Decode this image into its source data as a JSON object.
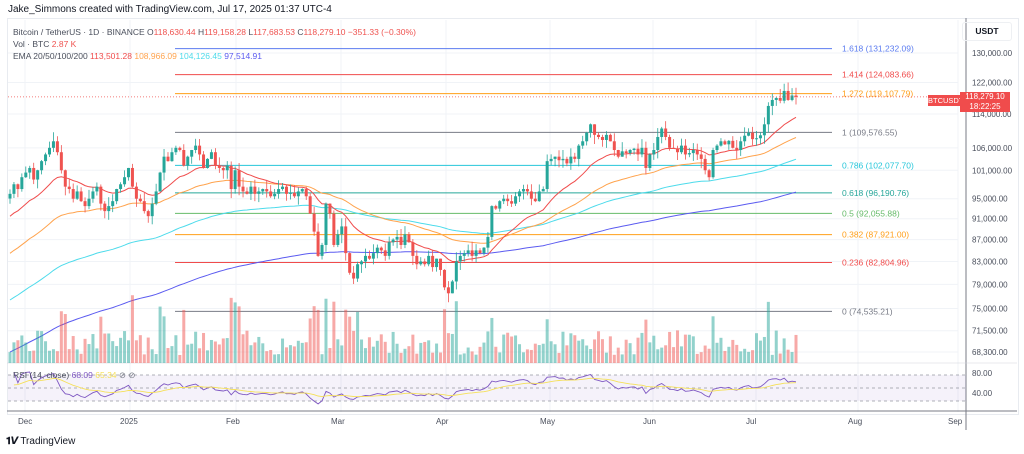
{
  "header": {
    "attribution": "Jake_Simmons created with TradingView.com, Jul 17, 2025 01:37 UTC-4"
  },
  "legend": {
    "symbol_line": "Bitcoin / TetherUS · 1D · BINANCE",
    "open_label": "O",
    "open": "118,630.44",
    "high_label": "H",
    "high": "119,158.28",
    "low_label": "L",
    "low": "117,683.53",
    "close_label": "C",
    "close": "118,279.10",
    "change": "−351.33 (−0.30%)",
    "volume_label": "Vol · BTC",
    "volume": "2.87 K",
    "ema_label": "EMA 20/50/100/200",
    "ema20": "113,501.28",
    "ema50": "108,966.09",
    "ema100": "104,126.45",
    "ema200": "97,514.91"
  },
  "rsi_legend": {
    "label": "RSI (14, close)",
    "rsi": "68.09",
    "ma": "65.34"
  },
  "price_axis": {
    "currency": "USDT",
    "ticks": [
      "130,000.00",
      "122,000.00",
      "114,000.00",
      "106,000.00",
      "101,000.00",
      "95,000.00",
      "91,000.00",
      "87,000.00",
      "83,000.00",
      "79,000.00",
      "75,000.00",
      "71,500.00",
      "68,300.00"
    ],
    "rsi_ticks": [
      "80.00",
      "40.00"
    ],
    "last_price": "118,279.10",
    "countdown": "18:22:25",
    "symbol_tag": "BTCUSDT"
  },
  "time_axis": {
    "labels": [
      "Dec",
      "2025",
      "Feb",
      "Mar",
      "Apr",
      "May",
      "Jun",
      "Jul",
      "Aug",
      "Sep"
    ]
  },
  "footer": {
    "logo_text": "TradingView"
  },
  "colors": {
    "up": "#26a69a",
    "down": "#ef5350",
    "ema20": "#f04c4c",
    "ema50": "#ffa34d",
    "ema100": "#4ddbeb",
    "ema200": "#5b5bf0",
    "rsi": "#7e57c2",
    "rsi_ma": "#f5e05a"
  },
  "chart_data": {
    "type": "candlestick",
    "title": "Bitcoin / TetherUS · 1D · BINANCE",
    "xlabel": "",
    "ylabel": "USDT",
    "x_ticks": [
      "Dec",
      "2025",
      "Feb",
      "Mar",
      "Apr",
      "May",
      "Jun",
      "Jul",
      "Aug",
      "Sep"
    ],
    "ylim": [
      66000,
      134000
    ],
    "y_ticks": [
      130000,
      122000,
      114000,
      106000,
      101000,
      95000,
      91000,
      87000,
      83000,
      79000,
      75000,
      71500,
      68300
    ],
    "last_bar": {
      "open": 118630.44,
      "high": 119158.28,
      "low": 117683.53,
      "close": 118279.1,
      "change": -351.33,
      "change_pct": -0.3,
      "volume_k_btc": 2.87
    },
    "ema": {
      "ema20": 113501.28,
      "ema50": 108966.09,
      "ema100": 104126.45,
      "ema200": 97514.91
    },
    "fibonacci": [
      {
        "level": "1.618",
        "price": 131232.09,
        "label": "1.618 (131,232.09)",
        "color": "#5b7cf0"
      },
      {
        "level": "1.414",
        "price": 124083.66,
        "label": "1.414 (124,083.66)",
        "color": "#f04c4c"
      },
      {
        "level": "1.272",
        "price": 119107.79,
        "label": "1.272 (119,107.79)",
        "color": "#ff9f1a"
      },
      {
        "level": "1",
        "price": 109576.55,
        "label": "1 (109,576.55)",
        "color": "#787b86"
      },
      {
        "level": "0.786",
        "price": 102077.7,
        "label": "0.786 (102,077.70)",
        "color": "#26c6da"
      },
      {
        "level": "0.618",
        "price": 96190.76,
        "label": "0.618 (96,190.76)",
        "color": "#26a69a"
      },
      {
        "level": "0.5",
        "price": 92055.88,
        "label": "0.5 (92,055.88)",
        "color": "#66bb6a"
      },
      {
        "level": "0.382",
        "price": 87921.0,
        "label": "0.382 (87,921.00)",
        "color": "#ff9f1a"
      },
      {
        "level": "0.236",
        "price": 82804.96,
        "label": "0.236 (82,804.96)",
        "color": "#f04c4c"
      },
      {
        "level": "0",
        "price": 74535.21,
        "label": "0 (74,535.21)",
        "color": "#787b86"
      }
    ],
    "series_closes_approx": [
      {
        "month": "Dec 2024",
        "values": [
          96000,
          98000,
          97000,
          99500,
          100500,
          101500,
          99000,
          101000,
          103000,
          104500,
          106000,
          107500,
          105000,
          101000,
          97500,
          97000,
          95000,
          96500,
          94500,
          93500,
          95000,
          96500,
          97500,
          94000,
          92500,
          93500
        ]
      },
      {
        "month": "Jan 2025",
        "values": [
          94500,
          97000,
          98000,
          99500,
          101500,
          97500,
          95000,
          94500,
          92500,
          91500,
          94000,
          96500,
          100500,
          104000,
          103000,
          105000,
          106000,
          105500,
          102000,
          104000,
          105500,
          106500,
          104500,
          101500,
          103500,
          105000,
          102000,
          101500,
          101000,
          102000
        ]
      },
      {
        "month": "Feb 2025",
        "values": [
          97000,
          101000,
          97500,
          96500,
          96000,
          97500,
          96000,
          96500,
          97000,
          96500,
          95500,
          96000,
          97000,
          97500,
          96000,
          96200,
          95500,
          96500,
          97000,
          95500,
          92000,
          88500,
          84000,
          86000
        ]
      },
      {
        "month": "Mar 2025",
        "values": [
          94000,
          92000,
          86000,
          88000,
          89500,
          84500,
          81000,
          80000,
          82500,
          83000,
          84000,
          83500,
          84500,
          85500,
          85000,
          84000,
          86500,
          87000,
          87500,
          86000,
          88000,
          86500,
          84000,
          82500,
          83000,
          82500,
          84000
        ]
      },
      {
        "month": "Apr 2025",
        "values": [
          82000,
          83500,
          81500,
          78500,
          77500,
          79500,
          83000,
          84000,
          84500,
          85000,
          84000,
          85000,
          84500,
          85500,
          87500,
          93500,
          93000,
          94500,
          95000,
          94500,
          94000,
          95500,
          96500,
          97000
        ]
      },
      {
        "month": "May 2025",
        "values": [
          96500,
          95000,
          94500,
          96500,
          97000,
          103000,
          103500,
          104000,
          103200,
          103500,
          102500,
          104000,
          103500,
          106500,
          107500,
          109500,
          111500,
          109000,
          108500,
          107800,
          109000,
          107500,
          105500,
          104000,
          105200,
          104800
        ]
      },
      {
        "month": "Jun 2025",
        "values": [
          105500,
          105800,
          104500,
          106000,
          101500,
          104500,
          105500,
          108500,
          110500,
          108500,
          106000,
          105800,
          105000,
          106500,
          104500,
          104800,
          105500,
          104500,
          103500,
          101000,
          99500,
          105500,
          106500,
          107500,
          106800,
          107600
        ]
      },
      {
        "month": "Jul 2025",
        "values": [
          106000,
          105500,
          107500,
          108800,
          109500,
          108000,
          108200,
          108900,
          111500,
          116000,
          117500,
          118000,
          117300,
          119800,
          117500,
          118630,
          118279
        ]
      }
    ],
    "rsi": {
      "period": 14,
      "last": 68.09,
      "ma_last": 65.34,
      "bands": [
        80,
        40
      ]
    }
  }
}
